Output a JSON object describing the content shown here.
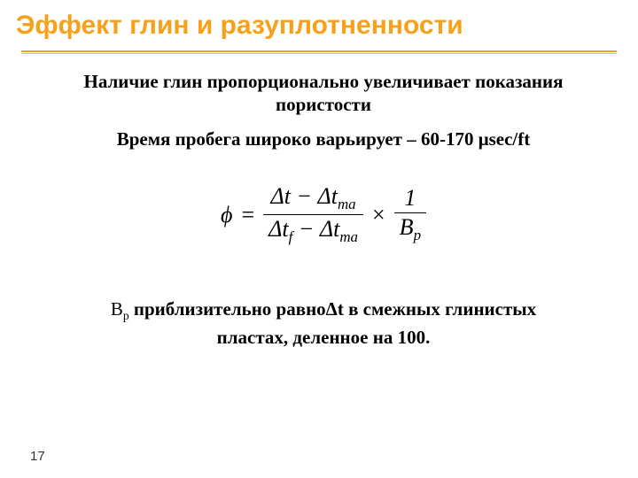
{
  "title": {
    "text": "Эффект глин и разуплотненности",
    "color": "#f7a11a",
    "fontsize_pt": 30,
    "font_family": "Arial",
    "font_weight": 700
  },
  "rule": {
    "main_color": "#f7a11a",
    "shadow_color": "#c9c3b8"
  },
  "para1": "Наличие глин пропорционально увеличивает показания пористости",
  "para2": "Время пробега широко варьирует – 60-170 μsec/ft",
  "formula": {
    "lhs_symbol": "ϕ",
    "equals": " = ",
    "frac1": {
      "num": "Δt − Δt",
      "num_sub": "ma",
      "den_left": "Δt",
      "den_left_sub": "f",
      "den_minus": " − Δt",
      "den_right_sub": "ma"
    },
    "times": "×",
    "frac2": {
      "num": "1",
      "den": "B",
      "den_sub": "p"
    },
    "fontsize_pt": 26,
    "font_family": "Times New Roman",
    "color": "#000000"
  },
  "bp": {
    "var": "B",
    "var_sub": "p",
    "text1": "  приблизительно равноΔt в смежных глинистых",
    "text2": "пластах, деленное на 100."
  },
  "page_number": "17",
  "background_color": "#ffffff",
  "body_font": {
    "family": "Times New Roman",
    "size_pt": 21,
    "weight": 700,
    "color": "#000000"
  }
}
